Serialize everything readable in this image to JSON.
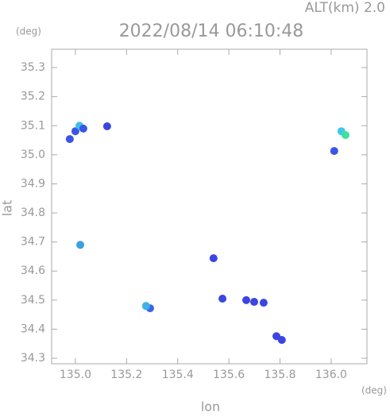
{
  "chart_data": {
    "type": "scatter",
    "header": "ALT(km)  2.0",
    "title": "2022/08/14 06:10:48",
    "y_unit": "(deg)",
    "x_unit": "(deg)",
    "xlabel": "lon",
    "ylabel": "lat",
    "xlim": [
      134.907,
      136.14
    ],
    "ylim": [
      34.281,
      35.363
    ],
    "xticks": [
      {
        "value": 135.0,
        "label": "135.0"
      },
      {
        "value": 135.2,
        "label": "135.2"
      },
      {
        "value": 135.4,
        "label": "135.4"
      },
      {
        "value": 135.6,
        "label": "135.6"
      },
      {
        "value": 135.8,
        "label": "135.8"
      },
      {
        "value": 136.0,
        "label": "136.0"
      }
    ],
    "yticks": [
      34.3,
      34.4,
      34.5,
      34.6,
      34.7,
      34.8,
      34.9,
      {
        "value": 35.0,
        "label": "35.0"
      },
      35.1,
      35.2,
      35.3
    ],
    "x": [
      135.0,
      135.016,
      134.978,
      135.031,
      135.124,
      135.019,
      135.292,
      135.276,
      136.04,
      136.056,
      136.012,
      135.54,
      135.575,
      135.668,
      135.699,
      135.736,
      135.786,
      135.807
    ],
    "y": [
      35.081,
      35.1,
      35.054,
      35.09,
      35.098,
      34.69,
      34.472,
      34.48,
      35.081,
      35.068,
      35.013,
      34.644,
      34.505,
      34.5,
      34.494,
      34.491,
      34.376,
      34.363
    ],
    "colors": [
      "#3b55e6",
      "#40c0e8",
      "#3b55e6",
      "#3b55e6",
      "#3b45e0",
      "#3aa0e0",
      "#3b65e6",
      "#40b0e8",
      "#40c8e8",
      "#40e0a0",
      "#3b55e6",
      "#3b45e0",
      "#3b45e0",
      "#3b45e0",
      "#3b45e0",
      "#3b45e0",
      "#3b45e0",
      "#3b45e0"
    ]
  }
}
